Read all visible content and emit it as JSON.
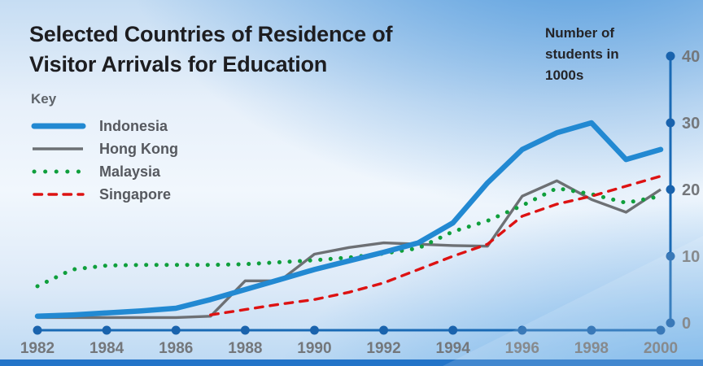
{
  "title_lines": [
    "Selected Countries of Residence of",
    "Visitor Arrivals for Education"
  ],
  "key": {
    "label": "Key"
  },
  "y_axis_title_lines": [
    "Number of",
    "students in",
    "1000s"
  ],
  "colors": {
    "axis_line": "#1a6ab5",
    "tick_dot": "#1a63ad",
    "tick_label": "#74777b",
    "title_text": "#1d1d20",
    "legend_text": "#56595f",
    "bottom_bar": "#2374c8"
  },
  "chart_data": {
    "type": "line",
    "title": "Selected Countries of Residence of Visitor Arrivals for Education",
    "xlabel": "",
    "ylabel": "Number of students in 1000s",
    "xlim": [
      1982,
      2000
    ],
    "ylim": [
      0,
      40
    ],
    "grid": false,
    "legend_position": "top-left",
    "x": [
      1982,
      1983,
      1984,
      1985,
      1986,
      1987,
      1988,
      1989,
      1990,
      1991,
      1992,
      1993,
      1994,
      1995,
      1996,
      1997,
      1998,
      1999,
      2000
    ],
    "x_ticks": [
      1982,
      1984,
      1986,
      1988,
      1990,
      1992,
      1994,
      1996,
      1998,
      2000
    ],
    "x_tick_labels": [
      "1982",
      "1984",
      "1986",
      "1988",
      "1990",
      "1992",
      "1994",
      "1996",
      "1998",
      "2000"
    ],
    "y_ticks": [
      0,
      10,
      20,
      30,
      40
    ],
    "y_tick_labels": [
      "0",
      "10",
      "20",
      "30",
      "40"
    ],
    "series": [
      {
        "name": "Indonesia",
        "color": "#2289d2",
        "style": "solid-thick",
        "values": [
          1,
          1.2,
          1.5,
          1.8,
          2.2,
          3.5,
          5,
          6.5,
          8,
          9.3,
          10.6,
          12,
          15,
          21,
          26,
          28.5,
          30,
          24.5,
          26
        ]
      },
      {
        "name": "Hong Kong",
        "color": "#6d7074",
        "style": "solid",
        "values": [
          0.8,
          0.8,
          0.8,
          0.8,
          0.8,
          1,
          6.3,
          6.3,
          10.3,
          11.3,
          12,
          11.8,
          11.6,
          11.5,
          19,
          21.3,
          18.5,
          16.6,
          20
        ]
      },
      {
        "name": "Malaysia",
        "color": "#0f9f3c",
        "style": "dotted",
        "values": [
          5.5,
          8,
          8.6,
          8.7,
          8.7,
          8.7,
          8.8,
          9.1,
          9.4,
          9.8,
          10.4,
          11.2,
          13.7,
          15.3,
          17.6,
          20.2,
          19.3,
          18,
          19
        ]
      },
      {
        "name": "Singapore",
        "color": "#dd1212",
        "style": "dashed",
        "values": [
          null,
          null,
          null,
          null,
          null,
          1.2,
          2,
          2.8,
          3.5,
          4.6,
          6,
          8,
          10,
          11.8,
          16,
          17.8,
          19,
          20.5,
          22
        ]
      }
    ]
  }
}
